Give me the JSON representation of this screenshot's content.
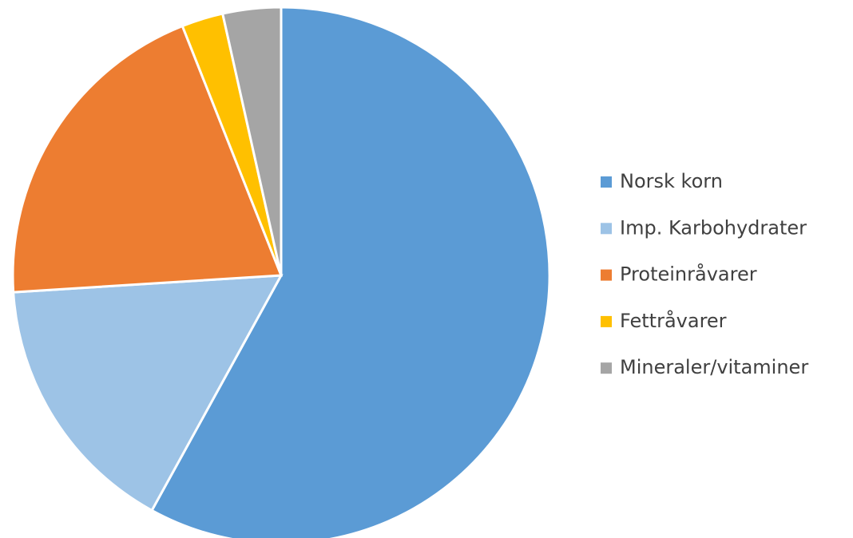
{
  "chart_data": {
    "type": "pie",
    "categories": [
      "Norsk korn",
      "Imp. Karbohydrater",
      "Proteinråvarer",
      "Fettråvarer",
      "Mineraler/vitaminer"
    ],
    "values": [
      58,
      16,
      20,
      2.5,
      3.5
    ],
    "colors": [
      "#5b9bd5",
      "#9dc3e6",
      "#ed7d31",
      "#ffc000",
      "#a5a5a5"
    ],
    "legend": "right"
  }
}
